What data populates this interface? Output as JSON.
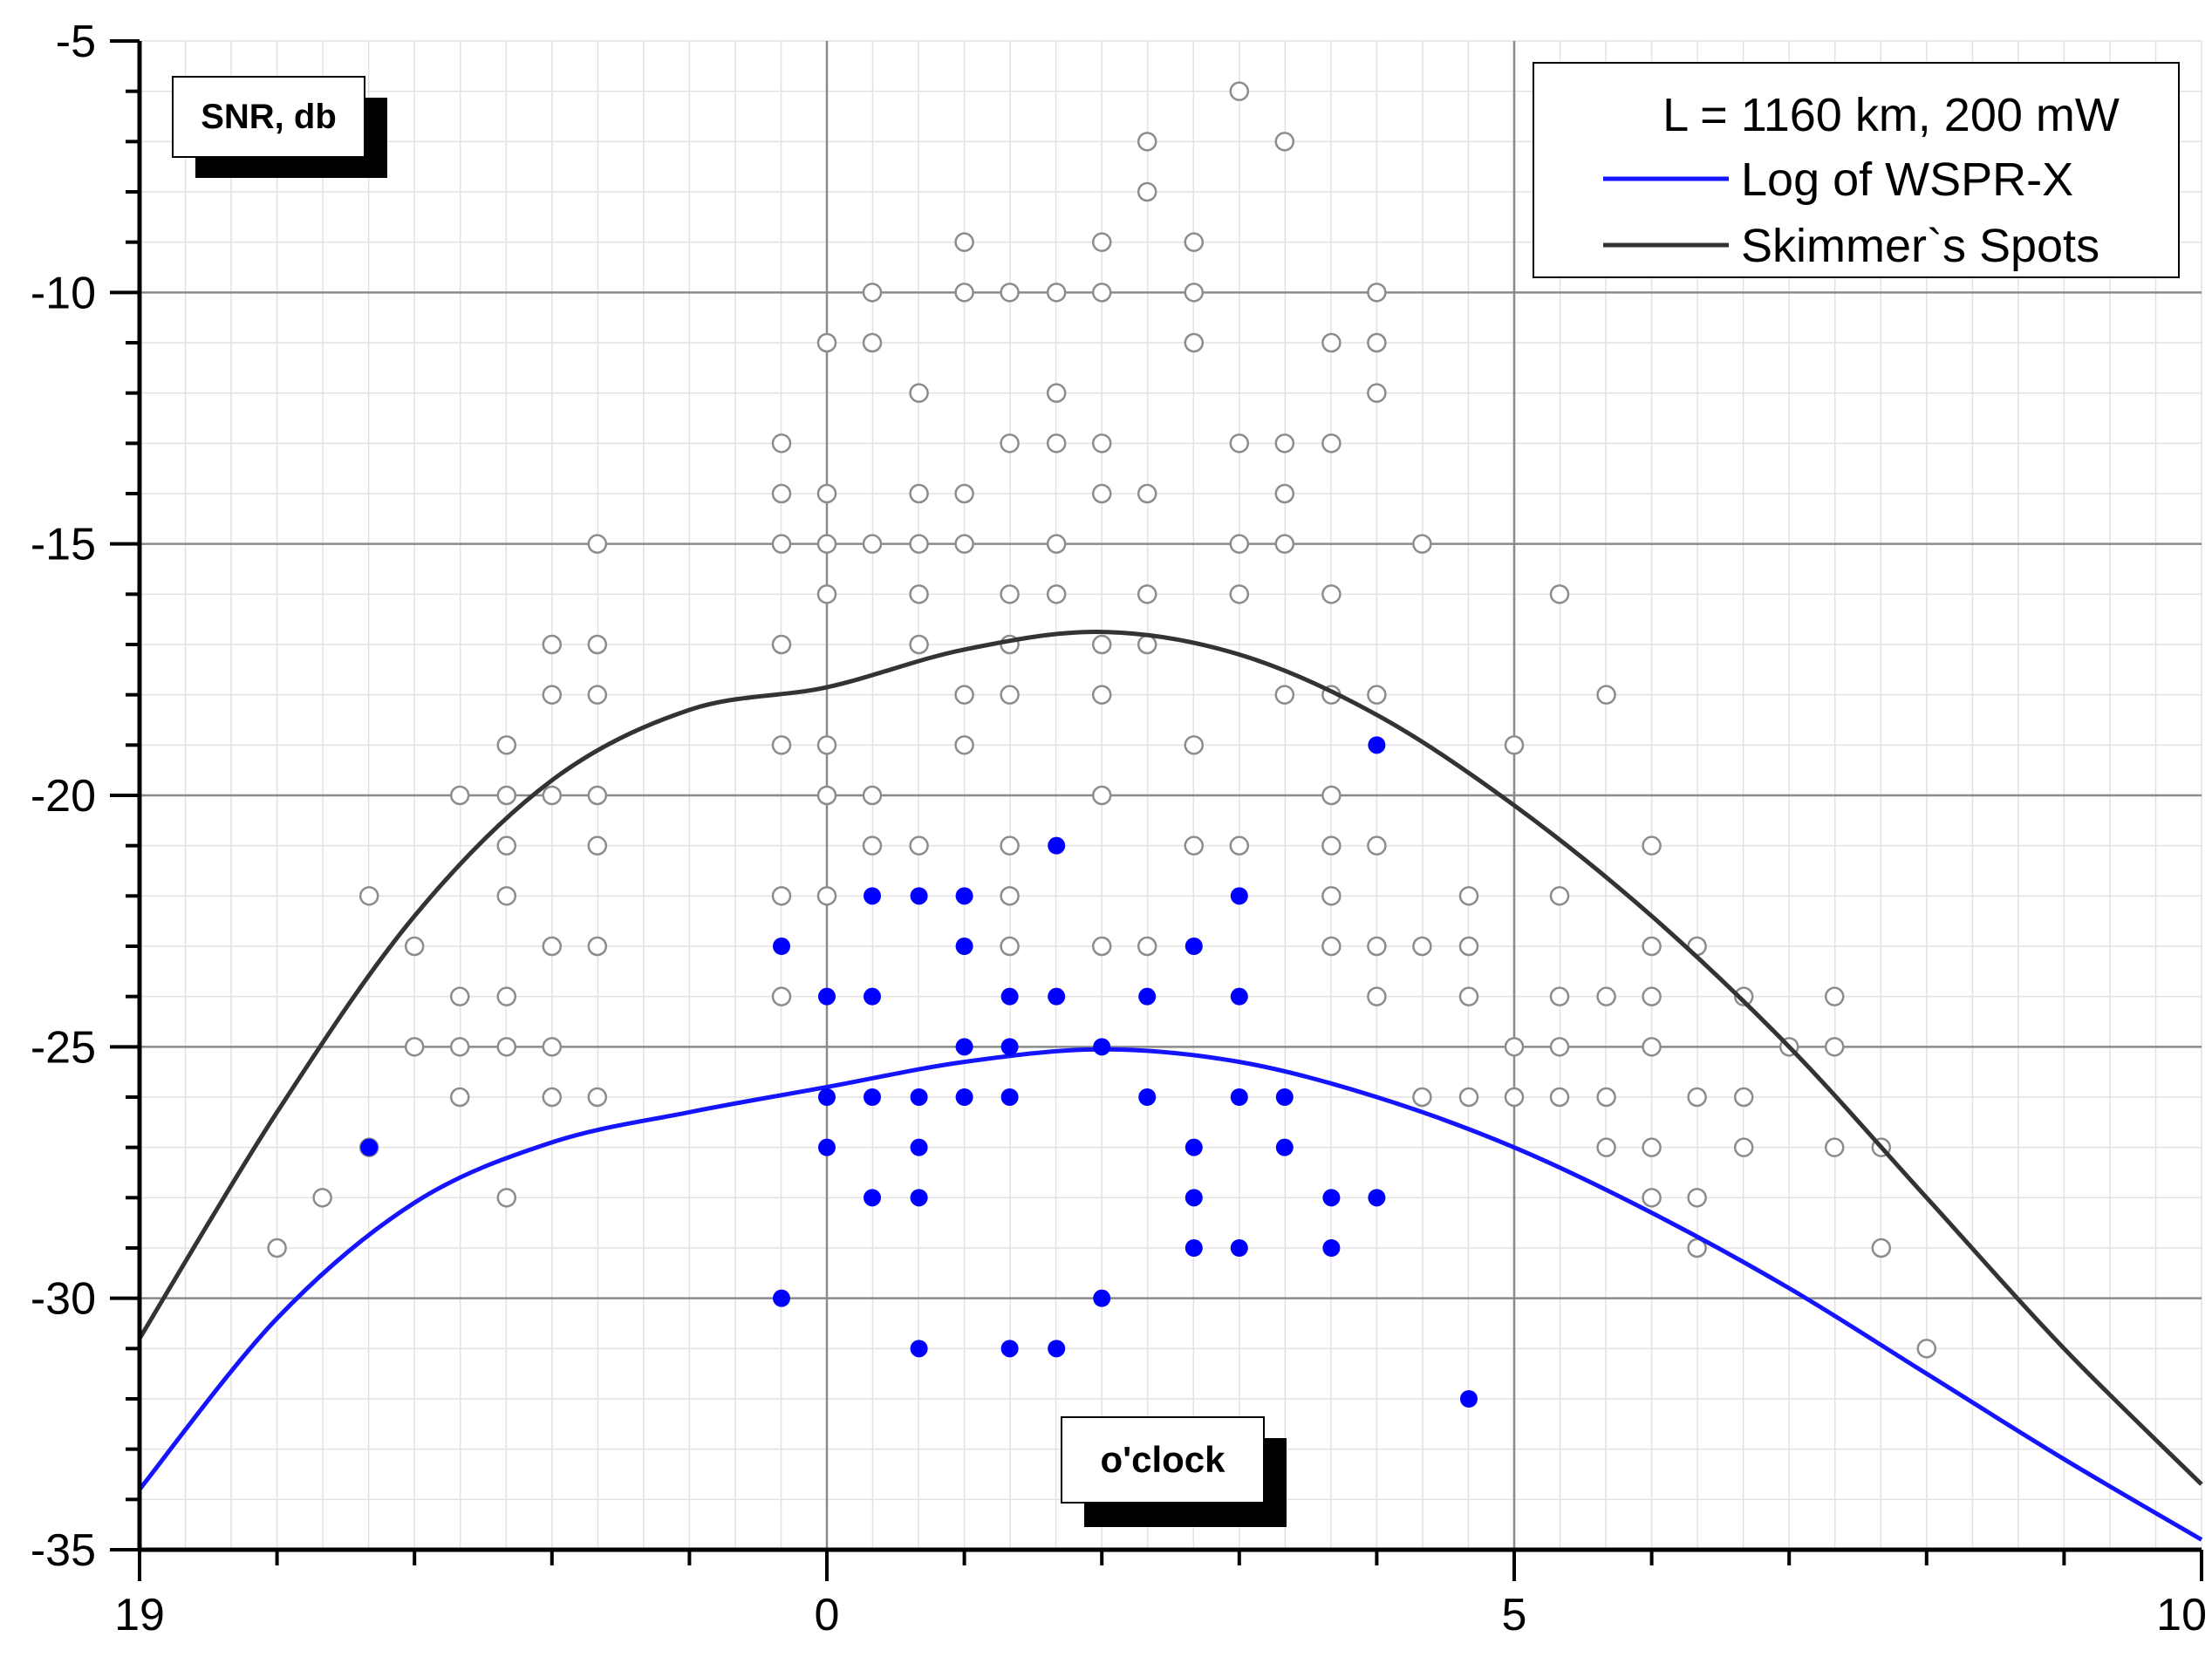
{
  "chart_data": {
    "type": "scatter",
    "x_tick_labels": [
      "19",
      "0",
      "5",
      "10"
    ],
    "y_tick_labels": [
      "-5",
      "-10",
      "-15",
      "-20",
      "-25",
      "-30",
      "-35"
    ],
    "ylim": [
      -35,
      -5
    ],
    "x_range_hours": "19 to 10 (o'clock)",
    "grid": true,
    "legend_position": "top-right",
    "annotations": {
      "ylabel": "SNR, db",
      "xlabel": "o'clock"
    },
    "legend": {
      "title": "L = 1160 km, 200 mW",
      "entries": [
        {
          "label": "Log of WSPR-X",
          "color": "#1414ff"
        },
        {
          "label": "Skimmer`s Spots",
          "color": "#333333"
        }
      ]
    },
    "series": [
      {
        "name": "Log of WSPR-X",
        "kind": "points",
        "color": "#0000ff",
        "points": [
          [
            20.67,
            -27
          ],
          [
            23.67,
            -23
          ],
          [
            23.67,
            -30
          ],
          [
            0.0,
            -24
          ],
          [
            0.0,
            -26
          ],
          [
            0.0,
            -27
          ],
          [
            0.33,
            -22
          ],
          [
            0.33,
            -24
          ],
          [
            0.33,
            -26
          ],
          [
            0.33,
            -28
          ],
          [
            0.67,
            -22
          ],
          [
            0.67,
            -26
          ],
          [
            0.67,
            -27
          ],
          [
            0.67,
            -28
          ],
          [
            0.67,
            -31
          ],
          [
            1.0,
            -22
          ],
          [
            1.0,
            -23
          ],
          [
            1.0,
            -25
          ],
          [
            1.0,
            -26
          ],
          [
            1.33,
            -24
          ],
          [
            1.33,
            -25
          ],
          [
            1.33,
            -26
          ],
          [
            1.33,
            -31
          ],
          [
            1.67,
            -21
          ],
          [
            1.67,
            -24
          ],
          [
            1.67,
            -31
          ],
          [
            2.0,
            -25
          ],
          [
            2.0,
            -30
          ],
          [
            2.33,
            -24
          ],
          [
            2.33,
            -26
          ],
          [
            2.67,
            -23
          ],
          [
            2.67,
            -27
          ],
          [
            2.67,
            -28
          ],
          [
            2.67,
            -29
          ],
          [
            3.0,
            -22
          ],
          [
            3.0,
            -24
          ],
          [
            3.0,
            -26
          ],
          [
            3.0,
            -29
          ],
          [
            3.33,
            -26
          ],
          [
            3.33,
            -27
          ],
          [
            3.67,
            -28
          ],
          [
            3.67,
            -29
          ],
          [
            4.0,
            -19
          ],
          [
            4.0,
            -28
          ],
          [
            4.67,
            -32
          ]
        ]
      },
      {
        "name": "Skimmer`s Spots",
        "kind": "points",
        "color": "#8c8c8c",
        "points": [
          [
            20.0,
            -29
          ],
          [
            20.33,
            -28
          ],
          [
            20.67,
            -22
          ],
          [
            20.67,
            -27
          ],
          [
            21.0,
            -23
          ],
          [
            21.0,
            -25
          ],
          [
            21.33,
            -20
          ],
          [
            21.33,
            -24
          ],
          [
            21.33,
            -25
          ],
          [
            21.33,
            -26
          ],
          [
            21.67,
            -19
          ],
          [
            21.67,
            -20
          ],
          [
            21.67,
            -21
          ],
          [
            21.67,
            -22
          ],
          [
            21.67,
            -24
          ],
          [
            21.67,
            -25
          ],
          [
            21.67,
            -28
          ],
          [
            22.0,
            -17
          ],
          [
            22.0,
            -18
          ],
          [
            22.0,
            -20
          ],
          [
            22.0,
            -23
          ],
          [
            22.0,
            -25
          ],
          [
            22.0,
            -26
          ],
          [
            22.33,
            -15
          ],
          [
            22.33,
            -17
          ],
          [
            22.33,
            -18
          ],
          [
            22.33,
            -20
          ],
          [
            22.33,
            -21
          ],
          [
            22.33,
            -23
          ],
          [
            22.33,
            -26
          ],
          [
            23.67,
            -13
          ],
          [
            23.67,
            -14
          ],
          [
            23.67,
            -15
          ],
          [
            23.67,
            -17
          ],
          [
            23.67,
            -19
          ],
          [
            23.67,
            -22
          ],
          [
            23.67,
            -24
          ],
          [
            0.0,
            -11
          ],
          [
            0.0,
            -14
          ],
          [
            0.0,
            -15
          ],
          [
            0.0,
            -16
          ],
          [
            0.0,
            -19
          ],
          [
            0.0,
            -20
          ],
          [
            0.0,
            -22
          ],
          [
            0.33,
            -10
          ],
          [
            0.33,
            -11
          ],
          [
            0.33,
            -15
          ],
          [
            0.33,
            -20
          ],
          [
            0.33,
            -21
          ],
          [
            0.67,
            -12
          ],
          [
            0.67,
            -14
          ],
          [
            0.67,
            -15
          ],
          [
            0.67,
            -16
          ],
          [
            0.67,
            -17
          ],
          [
            0.67,
            -21
          ],
          [
            1.0,
            -9
          ],
          [
            1.0,
            -10
          ],
          [
            1.0,
            -14
          ],
          [
            1.0,
            -15
          ],
          [
            1.0,
            -18
          ],
          [
            1.0,
            -19
          ],
          [
            1.33,
            -10
          ],
          [
            1.33,
            -13
          ],
          [
            1.33,
            -16
          ],
          [
            1.33,
            -17
          ],
          [
            1.33,
            -18
          ],
          [
            1.33,
            -21
          ],
          [
            1.33,
            -22
          ],
          [
            1.33,
            -23
          ],
          [
            1.67,
            -10
          ],
          [
            1.67,
            -12
          ],
          [
            1.67,
            -13
          ],
          [
            1.67,
            -15
          ],
          [
            1.67,
            -16
          ],
          [
            2.0,
            -9
          ],
          [
            2.0,
            -10
          ],
          [
            2.0,
            -13
          ],
          [
            2.0,
            -14
          ],
          [
            2.0,
            -17
          ],
          [
            2.0,
            -18
          ],
          [
            2.0,
            -20
          ],
          [
            2.0,
            -23
          ],
          [
            2.33,
            -7
          ],
          [
            2.33,
            -8
          ],
          [
            2.33,
            -14
          ],
          [
            2.33,
            -16
          ],
          [
            2.33,
            -17
          ],
          [
            2.33,
            -23
          ],
          [
            2.67,
            -9
          ],
          [
            2.67,
            -10
          ],
          [
            2.67,
            -11
          ],
          [
            2.67,
            -19
          ],
          [
            2.67,
            -21
          ],
          [
            3.0,
            -6
          ],
          [
            3.0,
            -13
          ],
          [
            3.0,
            -15
          ],
          [
            3.0,
            -16
          ],
          [
            3.0,
            -21
          ],
          [
            3.33,
            -7
          ],
          [
            3.33,
            -13
          ],
          [
            3.33,
            -14
          ],
          [
            3.33,
            -15
          ],
          [
            3.33,
            -18
          ],
          [
            3.67,
            -11
          ],
          [
            3.67,
            -13
          ],
          [
            3.67,
            -16
          ],
          [
            3.67,
            -18
          ],
          [
            3.67,
            -20
          ],
          [
            3.67,
            -21
          ],
          [
            3.67,
            -22
          ],
          [
            3.67,
            -23
          ],
          [
            4.0,
            -10
          ],
          [
            4.0,
            -11
          ],
          [
            4.0,
            -12
          ],
          [
            4.0,
            -18
          ],
          [
            4.0,
            -21
          ],
          [
            4.0,
            -23
          ],
          [
            4.0,
            -24
          ],
          [
            4.33,
            -15
          ],
          [
            4.33,
            -23
          ],
          [
            4.33,
            -26
          ],
          [
            4.67,
            -22
          ],
          [
            4.67,
            -23
          ],
          [
            4.67,
            -24
          ],
          [
            4.67,
            -26
          ],
          [
            5.0,
            -19
          ],
          [
            5.0,
            -25
          ],
          [
            5.0,
            -26
          ],
          [
            5.33,
            -16
          ],
          [
            5.33,
            -22
          ],
          [
            5.33,
            -24
          ],
          [
            5.33,
            -25
          ],
          [
            5.33,
            -26
          ],
          [
            5.67,
            -18
          ],
          [
            5.67,
            -24
          ],
          [
            5.67,
            -26
          ],
          [
            5.67,
            -27
          ],
          [
            6.0,
            -21
          ],
          [
            6.0,
            -23
          ],
          [
            6.0,
            -24
          ],
          [
            6.0,
            -25
          ],
          [
            6.0,
            -27
          ],
          [
            6.0,
            -28
          ],
          [
            6.33,
            -23
          ],
          [
            6.33,
            -26
          ],
          [
            6.33,
            -28
          ],
          [
            6.33,
            -29
          ],
          [
            6.67,
            -24
          ],
          [
            6.67,
            -26
          ],
          [
            6.67,
            -27
          ],
          [
            7.0,
            -25
          ],
          [
            7.33,
            -24
          ],
          [
            7.33,
            -25
          ],
          [
            7.33,
            -27
          ],
          [
            7.67,
            -27
          ],
          [
            7.67,
            -29
          ],
          [
            8.0,
            -31
          ]
        ]
      },
      {
        "name": "Log of WSPR-X",
        "kind": "trend-curve",
        "color": "#1414ff",
        "points": [
          [
            19,
            -33.8
          ],
          [
            20,
            -30.4
          ],
          [
            21,
            -28.1
          ],
          [
            22,
            -26.9
          ],
          [
            23,
            -26.3
          ],
          [
            0,
            -25.8
          ],
          [
            1,
            -25.3
          ],
          [
            2,
            -25.05
          ],
          [
            3,
            -25.3
          ],
          [
            4,
            -26.0
          ],
          [
            5,
            -27.0
          ],
          [
            6,
            -28.3
          ],
          [
            7,
            -29.8
          ],
          [
            8,
            -31.5
          ],
          [
            9,
            -33.2
          ],
          [
            10,
            -34.8
          ]
        ]
      },
      {
        "name": "Skimmer`s Spots",
        "kind": "trend-curve",
        "color": "#333333",
        "points": [
          [
            19,
            -30.8
          ],
          [
            20,
            -26.3
          ],
          [
            21,
            -22.4
          ],
          [
            22,
            -19.7
          ],
          [
            23,
            -18.3
          ],
          [
            0,
            -17.85
          ],
          [
            1,
            -17.1
          ],
          [
            2,
            -16.75
          ],
          [
            3,
            -17.2
          ],
          [
            4,
            -18.4
          ],
          [
            5,
            -20.2
          ],
          [
            6,
            -22.4
          ],
          [
            7,
            -25.0
          ],
          [
            8,
            -28.0
          ],
          [
            9,
            -31.0
          ],
          [
            10,
            -33.7
          ]
        ]
      }
    ]
  }
}
